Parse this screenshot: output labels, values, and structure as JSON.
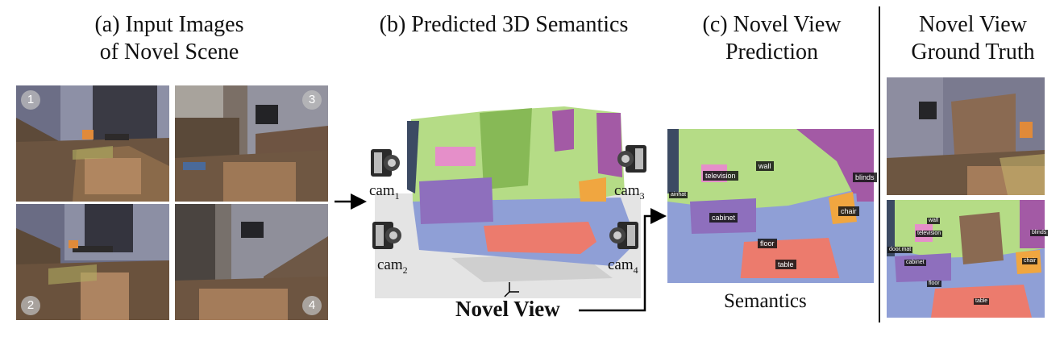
{
  "panels": {
    "a": {
      "title": "(a)  Input Images\nof Novel Scene",
      "badges": [
        "1",
        "3",
        "2",
        "4"
      ]
    },
    "b": {
      "title": "(b) Predicted 3D Semantics",
      "cams": {
        "c1": "cam",
        "c1_sub": "1",
        "c2": "cam",
        "c2_sub": "2",
        "c3": "cam",
        "c3_sub": "3",
        "c4": "cam",
        "c4_sub": "4"
      },
      "novel_view": "Novel View"
    },
    "c": {
      "title": "(c) Novel View\nPrediction",
      "labels": {
        "television": "television",
        "wall": "wall",
        "blinds": "blinds",
        "cabinet": "cabinet",
        "chair": "chair",
        "floor": "floor",
        "table": "table",
        "left": "ainhat"
      },
      "caption": "Semantics"
    },
    "d": {
      "title": "Novel View\nGround Truth",
      "labels": {
        "wall": "wall",
        "television": "television",
        "blinds": "blinds",
        "door": "door.mat",
        "cabinet": "cabinet",
        "chair": "chair",
        "floor": "floor",
        "table": "table"
      }
    }
  },
  "colors": {
    "wall": "#b5dc86",
    "floor": "#8f9fd6",
    "table": "#ec7b6d",
    "cabinet": "#8e6fbd",
    "chair": "#f0a640",
    "television": "#e58fc9",
    "blinds": "#a35aa5",
    "dark_wall": "#3c4a63"
  }
}
